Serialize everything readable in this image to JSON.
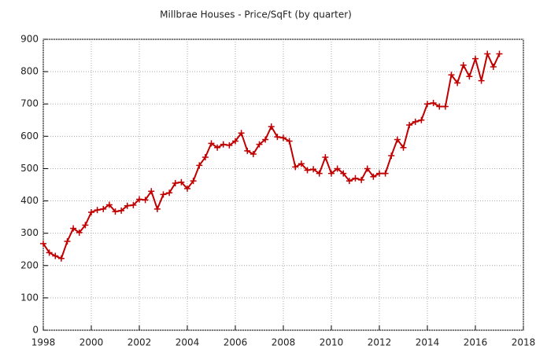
{
  "chart_data": {
    "type": "line",
    "title": "Millbrae Houses - Price/SqFt (by quarter)",
    "x": [
      1998,
      1998.25,
      1998.5,
      1998.75,
      1999,
      1999.25,
      1999.5,
      1999.75,
      2000,
      2000.25,
      2000.5,
      2000.75,
      2001,
      2001.25,
      2001.5,
      2001.75,
      2002,
      2002.25,
      2002.5,
      2002.75,
      2003,
      2003.25,
      2003.5,
      2003.75,
      2004,
      2004.25,
      2004.5,
      2004.75,
      2005,
      2005.25,
      2005.5,
      2005.75,
      2006,
      2006.25,
      2006.5,
      2006.75,
      2007,
      2007.25,
      2007.5,
      2007.75,
      2008,
      2008.25,
      2008.5,
      2008.75,
      2009,
      2009.25,
      2009.5,
      2009.75,
      2010,
      2010.25,
      2010.5,
      2010.75,
      2011,
      2011.25,
      2011.5,
      2011.75,
      2012,
      2012.25,
      2012.5,
      2012.75,
      2013,
      2013.25,
      2013.5,
      2013.75,
      2014,
      2014.25,
      2014.5,
      2014.75,
      2015,
      2015.25,
      2015.5,
      2015.75,
      2016,
      2016.25,
      2016.5,
      2016.75,
      2017
    ],
    "series": [
      {
        "color": "#c00000",
        "values": [
          268,
          240,
          230,
          222,
          275,
          315,
          302,
          325,
          365,
          372,
          375,
          388,
          367,
          370,
          385,
          387,
          405,
          403,
          430,
          375,
          420,
          425,
          455,
          458,
          438,
          462,
          510,
          535,
          578,
          565,
          575,
          572,
          585,
          610,
          555,
          545,
          575,
          590,
          630,
          598,
          595,
          585,
          505,
          515,
          495,
          498,
          485,
          535,
          485,
          500,
          485,
          462,
          470,
          465,
          500,
          475,
          485,
          485,
          540,
          590,
          565,
          635,
          645,
          650,
          700,
          703,
          692,
          692,
          790,
          765,
          820,
          785,
          840,
          772,
          855,
          815,
          855
        ]
      }
    ],
    "xlim": [
      1998,
      2018
    ],
    "xticks": [
      1998,
      2000,
      2002,
      2004,
      2006,
      2008,
      2010,
      2012,
      2014,
      2016,
      2018
    ],
    "ylim": [
      0,
      900
    ],
    "yticks": [
      0,
      100,
      200,
      300,
      400,
      500,
      600,
      700,
      800,
      900
    ],
    "grid": true
  }
}
